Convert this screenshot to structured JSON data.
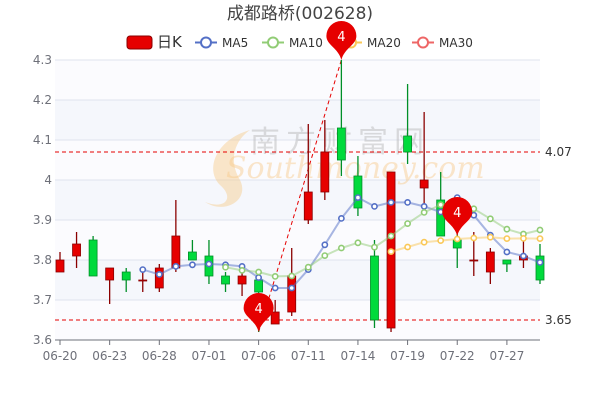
{
  "title": "成都路桥(002628)",
  "watermark": {
    "cn": "南方财富网",
    "en": "Southmoney.com"
  },
  "legend": [
    {
      "label": "日K",
      "color": "#e60000",
      "type": "candle"
    },
    {
      "label": "MA5",
      "color": "#5470c6",
      "type": "line"
    },
    {
      "label": "MA10",
      "color": "#91cc75",
      "type": "line"
    },
    {
      "label": "MA20",
      "color": "#fac858",
      "type": "line"
    },
    {
      "label": "MA30",
      "color": "#ee6666",
      "type": "line"
    }
  ],
  "colors": {
    "up": "#e60000",
    "up_border": "#8a0000",
    "down": "#00da3c",
    "down_border": "#008f28",
    "markline": "#e60000"
  },
  "chart_data": {
    "type": "candlestick",
    "title": "成都路桥(002628)",
    "ylim": [
      3.6,
      4.3
    ],
    "yticks": [
      "4.3",
      "4.2",
      "4.1",
      "4",
      "3.9",
      "3.8",
      "3.7",
      "3.6"
    ],
    "grid": true,
    "legend_position": "top",
    "dates": [
      "06-20",
      "06-21",
      "06-22",
      "06-23",
      "06-24",
      "06-27",
      "06-28",
      "06-29",
      "06-30",
      "07-01",
      "07-04",
      "07-05",
      "07-06",
      "07-07",
      "07-08",
      "07-11",
      "07-12",
      "07-13",
      "07-14",
      "07-15",
      "07-18",
      "07-19",
      "07-20",
      "07-21",
      "07-22",
      "07-25",
      "07-26",
      "07-27",
      "07-28",
      "07-29"
    ],
    "xtick_labels": [
      "06-20",
      "06-23",
      "06-28",
      "07-01",
      "07-06",
      "07-11",
      "07-14",
      "07-19",
      "07-22",
      "07-27"
    ],
    "ohlc": [
      [
        3.77,
        3.8,
        3.77,
        3.82
      ],
      [
        3.81,
        3.84,
        3.78,
        3.87
      ],
      [
        3.85,
        3.76,
        3.76,
        3.86
      ],
      [
        3.75,
        3.78,
        3.69,
        3.78
      ],
      [
        3.77,
        3.75,
        3.72,
        3.78
      ],
      [
        3.75,
        3.75,
        3.72,
        3.77
      ],
      [
        3.73,
        3.78,
        3.72,
        3.79
      ],
      [
        3.78,
        3.86,
        3.77,
        3.95
      ],
      [
        3.82,
        3.8,
        3.8,
        3.85
      ],
      [
        3.81,
        3.76,
        3.74,
        3.85
      ],
      [
        3.76,
        3.74,
        3.72,
        3.77
      ],
      [
        3.74,
        3.76,
        3.71,
        3.77
      ],
      [
        3.75,
        3.72,
        3.62,
        3.75
      ],
      [
        3.64,
        3.67,
        3.64,
        3.7
      ],
      [
        3.67,
        3.76,
        3.66,
        3.83
      ],
      [
        3.9,
        3.97,
        3.89,
        4.14
      ],
      [
        3.97,
        4.07,
        3.95,
        4.15
      ],
      [
        4.13,
        4.05,
        4.01,
        4.3
      ],
      [
        4.01,
        3.93,
        3.91,
        4.06
      ],
      [
        3.81,
        3.65,
        3.63,
        3.85
      ],
      [
        3.63,
        4.02,
        3.62,
        4.02
      ],
      [
        4.11,
        4.07,
        4.04,
        4.24
      ],
      [
        3.98,
        4.0,
        3.94,
        4.17
      ],
      [
        3.95,
        3.86,
        3.86,
        4.02
      ],
      [
        3.85,
        3.83,
        3.78,
        3.88
      ],
      [
        3.8,
        3.8,
        3.76,
        3.87
      ],
      [
        3.77,
        3.82,
        3.74,
        3.83
      ],
      [
        3.8,
        3.79,
        3.77,
        3.8
      ],
      [
        3.8,
        3.81,
        3.78,
        3.85
      ],
      [
        3.81,
        3.75,
        3.74,
        3.84
      ]
    ],
    "ohlc_order": [
      "open",
      "close",
      "low",
      "high"
    ],
    "moving_averages": [
      {
        "name": "MA5",
        "period": 5
      },
      {
        "name": "MA10",
        "period": 10
      },
      {
        "name": "MA20",
        "period": 20
      },
      {
        "name": "MA30",
        "period": 30
      }
    ],
    "mark_points": [
      {
        "date": "07-13",
        "value": 4.3,
        "label": "4"
      },
      {
        "date": "07-06",
        "value": 3.62,
        "label": "4"
      },
      {
        "date": "07-22",
        "value": 3.86,
        "label": "4"
      }
    ],
    "mark_lines": [
      {
        "value": 4.07,
        "label": "4.07"
      },
      {
        "value": 3.65,
        "label": "3.65"
      }
    ],
    "trend_line": {
      "from": {
        "date": "07-06",
        "value": 3.62
      },
      "to": {
        "date": "07-13",
        "value": 4.3
      }
    }
  }
}
